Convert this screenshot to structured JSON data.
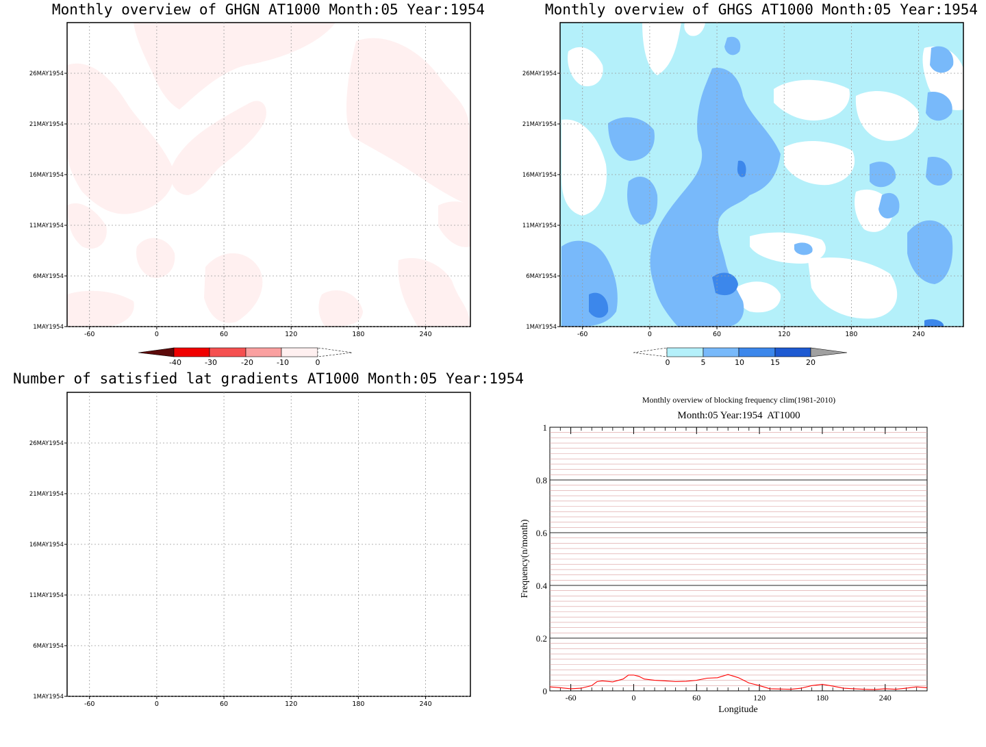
{
  "chart_data": [
    {
      "type": "heatmap",
      "title": "Monthly overview of GHGN AT1000 Month:05 Year:1954",
      "x_ticks": [
        "-60",
        "0",
        "60",
        "120",
        "180",
        "240"
      ],
      "y_ticks": [
        "1MAY1954",
        "6MAY1954",
        "11MAY1954",
        "16MAY1954",
        "21MAY1954",
        "26MAY1954"
      ],
      "xlim": [
        -80,
        280
      ],
      "colorbar": {
        "labels": [
          "-40",
          "-30",
          "-20",
          "-10",
          "0"
        ],
        "colors": [
          "#5c0a0a",
          "#f00000",
          "#f55050",
          "#faa0a0",
          "#fff0f0",
          "#ffffff"
        ]
      }
    },
    {
      "type": "heatmap",
      "title": "Monthly overview of GHGS AT1000 Month:05 Year:1954",
      "x_ticks": [
        "-60",
        "0",
        "60",
        "120",
        "180",
        "240"
      ],
      "y_ticks": [
        "1MAY1954",
        "6MAY1954",
        "11MAY1954",
        "16MAY1954",
        "21MAY1954",
        "26MAY1954"
      ],
      "xlim": [
        -80,
        280
      ],
      "colorbar": {
        "labels": [
          "0",
          "5",
          "10",
          "15",
          "20"
        ],
        "colors": [
          "#ffffff",
          "#b4f0fa",
          "#78b9fa",
          "#3c87eb",
          "#1e5ad2",
          "#a0a0a0"
        ]
      }
    },
    {
      "type": "heatmap",
      "title": "Number of satisfied lat gradients AT1000 Month:05 Year:1954",
      "x_ticks": [
        "-60",
        "0",
        "60",
        "120",
        "180",
        "240"
      ],
      "y_ticks": [
        "1MAY1954",
        "6MAY1954",
        "11MAY1954",
        "16MAY1954",
        "21MAY1954",
        "26MAY1954"
      ],
      "xlim": [
        -80,
        280
      ]
    },
    {
      "type": "line",
      "title": "Monthly overview of blocking frequency clim(1981-2010)",
      "subtitle": "Month:05 Year:1954  AT1000",
      "xlabel": "Longitude",
      "ylabel": "Frequency(n/month)",
      "x_ticks": [
        "-60",
        "0",
        "60",
        "120",
        "180",
        "240"
      ],
      "y_ticks": [
        "0",
        "0.2",
        "0.4",
        "0.6",
        "0.8",
        "1"
      ],
      "xlim": [
        -80,
        280
      ],
      "ylim": [
        0,
        1
      ],
      "line_color": "#ff0000",
      "series": [
        {
          "x": [
            -80,
            -70,
            -60,
            -50,
            -40,
            -35,
            -30,
            -20,
            -10,
            -5,
            0,
            5,
            10,
            20,
            30,
            40,
            50,
            60,
            70,
            80,
            90,
            100,
            110,
            120,
            130,
            140,
            150,
            160,
            170,
            180,
            190,
            200,
            210,
            220,
            230,
            240,
            250,
            260,
            270,
            280
          ],
          "values": [
            0.015,
            0.012,
            0.008,
            0.01,
            0.02,
            0.035,
            0.038,
            0.034,
            0.045,
            0.06,
            0.06,
            0.055,
            0.045,
            0.04,
            0.038,
            0.035,
            0.036,
            0.04,
            0.048,
            0.05,
            0.062,
            0.05,
            0.03,
            0.02,
            0.008,
            0.007,
            0.006,
            0.01,
            0.02,
            0.025,
            0.018,
            0.01,
            0.008,
            0.006,
            0.005,
            0.008,
            0.006,
            0.01,
            0.015,
            0.012
          ]
        }
      ]
    }
  ]
}
